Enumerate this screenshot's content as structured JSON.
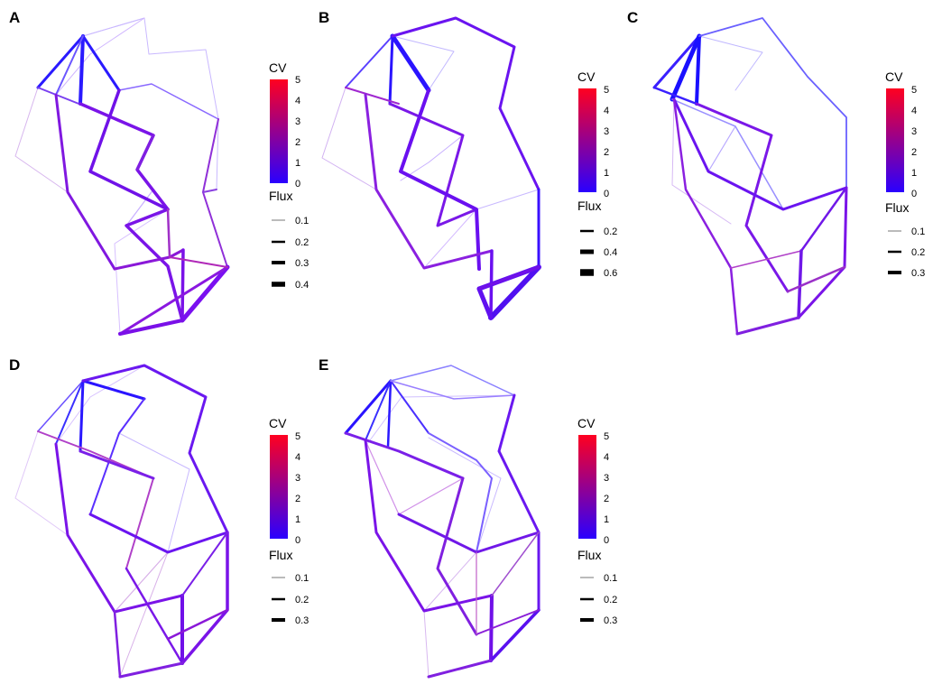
{
  "colors": {
    "cv_low": "#2a00ff",
    "cv_high": "#ff0020"
  },
  "legend": {
    "cv_title": "CV",
    "flux_title": "Flux"
  },
  "panels": [
    {
      "letter": "A",
      "cv_ticks": [
        "0",
        "1",
        "2",
        "3",
        "4",
        "5"
      ],
      "flux_ticks": [
        "0.1",
        "0.2",
        "0.3",
        "0.4"
      ],
      "flux_values": [
        0.1,
        0.2,
        0.3,
        0.4
      ]
    },
    {
      "letter": "B",
      "cv_ticks": [
        "0",
        "1",
        "2",
        "3",
        "4",
        "5"
      ],
      "flux_ticks": [
        "0.2",
        "0.4",
        "0.6"
      ],
      "flux_values": [
        0.2,
        0.4,
        0.6
      ]
    },
    {
      "letter": "C",
      "cv_ticks": [
        "0",
        "1",
        "2",
        "3",
        "4",
        "5"
      ],
      "flux_ticks": [
        "0.1",
        "0.2",
        "0.3"
      ],
      "flux_values": [
        0.1,
        0.2,
        0.3
      ]
    },
    {
      "letter": "D",
      "cv_ticks": [
        "0",
        "1",
        "2",
        "3",
        "4",
        "5"
      ],
      "flux_ticks": [
        "0.1",
        "0.2",
        "0.3"
      ],
      "flux_values": [
        0.1,
        0.2,
        0.3
      ]
    },
    {
      "letter": "E",
      "cv_ticks": [
        "0",
        "1",
        "2",
        "3",
        "4",
        "5"
      ],
      "flux_ticks": [
        "0.1",
        "0.2",
        "0.3"
      ],
      "flux_values": [
        0.1,
        0.2,
        0.3
      ]
    }
  ]
}
